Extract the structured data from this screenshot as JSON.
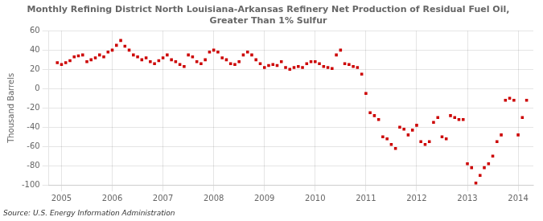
{
  "chart_data": {
    "type": "scatter",
    "title": "Monthly Refining District North Louisiana-Arkansas Refinery Net Production of Residual Fuel Oil,\nGreater Than 1% Sulfur",
    "y_label": "Thousand Barrels",
    "source": "Source: U.S. Energy Information Administration",
    "color": "#cc0000",
    "marker": "square",
    "grid": true,
    "xlim": [
      2004.75,
      2014.3
    ],
    "xticks": [
      2005,
      2006,
      2007,
      2008,
      2009,
      2010,
      2011,
      2012,
      2013,
      2014
    ],
    "ylim": [
      -100,
      60
    ],
    "yticks": [
      -100,
      -80,
      -60,
      -40,
      -20,
      0,
      20,
      40,
      60
    ],
    "x": [
      2004.917,
      2005.0,
      2005.083,
      2005.167,
      2005.25,
      2005.333,
      2005.417,
      2005.5,
      2005.583,
      2005.667,
      2005.75,
      2005.833,
      2005.917,
      2006.0,
      2006.083,
      2006.167,
      2006.25,
      2006.333,
      2006.417,
      2006.5,
      2006.583,
      2006.667,
      2006.75,
      2006.833,
      2006.917,
      2007.0,
      2007.083,
      2007.167,
      2007.25,
      2007.333,
      2007.417,
      2007.5,
      2007.583,
      2007.667,
      2007.75,
      2007.833,
      2007.917,
      2008.0,
      2008.083,
      2008.167,
      2008.25,
      2008.333,
      2008.417,
      2008.5,
      2008.583,
      2008.667,
      2008.75,
      2008.833,
      2008.917,
      2009.0,
      2009.083,
      2009.167,
      2009.25,
      2009.333,
      2009.417,
      2009.5,
      2009.583,
      2009.667,
      2009.75,
      2009.833,
      2009.917,
      2010.0,
      2010.083,
      2010.167,
      2010.25,
      2010.333,
      2010.417,
      2010.5,
      2010.583,
      2010.667,
      2010.75,
      2010.833,
      2010.917,
      2011.0,
      2011.083,
      2011.167,
      2011.25,
      2011.333,
      2011.417,
      2011.5,
      2011.583,
      2011.667,
      2011.75,
      2011.833,
      2011.917,
      2012.0,
      2012.083,
      2012.167,
      2012.25,
      2012.333,
      2012.417,
      2012.5,
      2012.583,
      2012.667,
      2012.75,
      2012.833,
      2012.917,
      2013.0,
      2013.083,
      2013.167,
      2013.25,
      2013.333,
      2013.417,
      2013.5,
      2013.583,
      2013.667,
      2013.75,
      2013.833,
      2013.917,
      2014.0,
      2014.083,
      2014.167
    ],
    "values": [
      27,
      25,
      27,
      29,
      33,
      34,
      35,
      28,
      30,
      32,
      35,
      33,
      38,
      40,
      45,
      50,
      44,
      40,
      35,
      33,
      30,
      32,
      28,
      26,
      29,
      32,
      35,
      30,
      28,
      25,
      23,
      35,
      33,
      28,
      26,
      30,
      38,
      40,
      38,
      32,
      30,
      26,
      25,
      28,
      35,
      38,
      35,
      30,
      26,
      22,
      24,
      25,
      24,
      28,
      22,
      20,
      22,
      23,
      22,
      26,
      28,
      28,
      26,
      23,
      22,
      21,
      35,
      40,
      26,
      25,
      23,
      22,
      15,
      -5,
      -25,
      -28,
      -32,
      -50,
      -52,
      -58,
      -62,
      -40,
      -42,
      -48,
      -43,
      -38,
      -55,
      -58,
      -55,
      -35,
      -30,
      -50,
      -52,
      -28,
      -30,
      -32,
      -32,
      -78,
      -82,
      -98,
      -90,
      -82,
      -78,
      -70,
      -55,
      -48,
      -12,
      -10,
      -12,
      -48,
      -30,
      -12
    ]
  }
}
